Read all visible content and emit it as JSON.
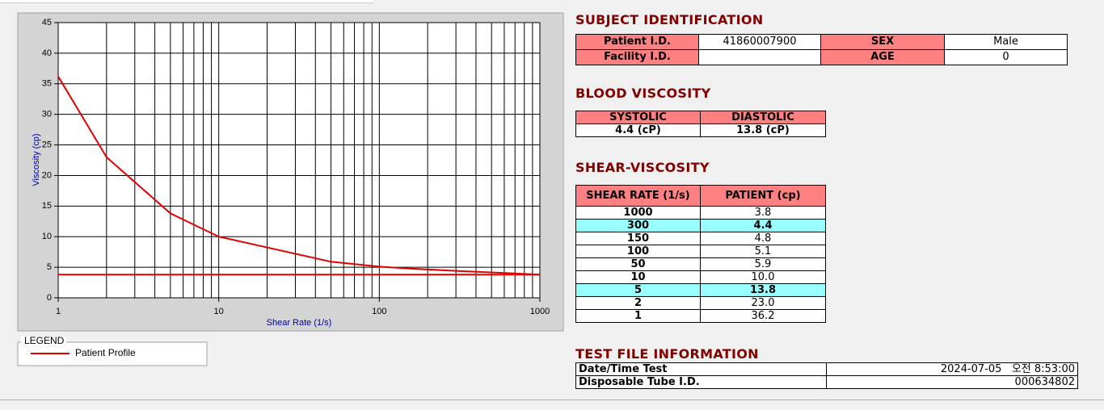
{
  "chart_data": {
    "type": "line",
    "x_label": "Shear Rate (1/s)",
    "y_label": "Viscosity (cp)",
    "xscale": "log",
    "xlim": [
      1,
      1000
    ],
    "ylim": [
      0,
      45
    ],
    "xticks": [
      1,
      10,
      100,
      1000
    ],
    "yticks": [
      0,
      5,
      10,
      15,
      20,
      25,
      30,
      35,
      40,
      45
    ],
    "grid": true,
    "legend_title": "LEGEND",
    "series": [
      {
        "name": "Patient Profile",
        "color": "#e00000",
        "x": [
          1,
          2,
          5,
          10,
          50,
          100,
          150,
          300,
          1000
        ],
        "values": [
          36.2,
          23.0,
          13.8,
          10.0,
          5.9,
          5.1,
          4.8,
          4.4,
          3.8
        ]
      },
      {
        "color": "#e00000",
        "x": [
          1,
          1000
        ],
        "values": [
          3.8,
          3.8
        ]
      }
    ]
  },
  "subject_identification": {
    "title": "SUBJECT IDENTIFICATION",
    "rows": [
      [
        "Patient I.D.",
        "41860007900",
        "SEX",
        "Male"
      ],
      [
        "Facility I.D.",
        null,
        "AGE",
        "0"
      ]
    ]
  },
  "blood_viscosity": {
    "title": "BLOOD VISCOSITY",
    "headers": [
      "SYSTOLIC",
      "DIASTOLIC"
    ],
    "values": [
      "4.4 (cP)",
      "13.8 (cP)"
    ]
  },
  "shear_viscosity": {
    "title": "SHEAR-VISCOSITY",
    "headers": [
      "SHEAR RATE (1/s)",
      "PATIENT (cp)"
    ],
    "highlight": [
      1,
      6
    ],
    "rows": [
      [
        "1000",
        "3.8"
      ],
      [
        "300",
        "4.4"
      ],
      [
        "150",
        "4.8"
      ],
      [
        "100",
        "5.1"
      ],
      [
        "50",
        "5.9"
      ],
      [
        "10",
        "10.0"
      ],
      [
        "5",
        "13.8"
      ],
      [
        "2",
        "23.0"
      ],
      [
        "1",
        "36.2"
      ]
    ]
  },
  "test_file_information": {
    "title": "TEST FILE INFORMATION",
    "rows": [
      [
        "Date/Time Test",
        "2024-07-05   오전 8:53:00"
      ],
      [
        "Disposable Tube I.D.",
        "000634802"
      ]
    ]
  }
}
